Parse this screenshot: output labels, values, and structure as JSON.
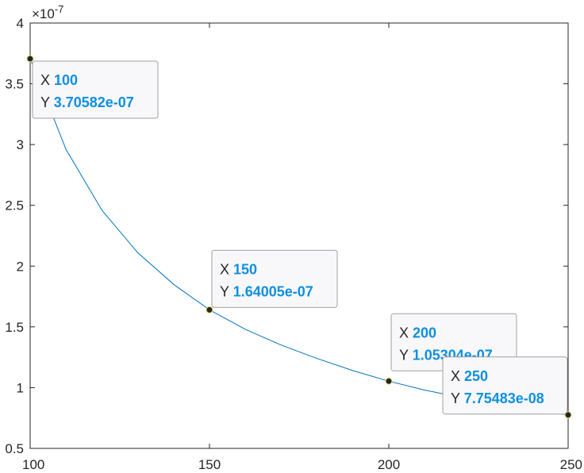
{
  "chart_data": {
    "type": "line",
    "title": "",
    "xlabel": "",
    "ylabel": "",
    "xlim": [
      100,
      250
    ],
    "ylim": [
      0.5,
      4
    ],
    "y_exponent_label": "×10",
    "y_exponent_power": "-7",
    "x_ticks": [
      "100",
      "150",
      "200",
      "250"
    ],
    "y_ticks": [
      "0.5",
      "1",
      "1.5",
      "2",
      "2.5",
      "3",
      "3.5",
      "4"
    ],
    "grid": false,
    "line_color": "#0072bd",
    "series": [
      {
        "x": [
          100,
          110,
          120,
          130,
          140,
          150,
          160,
          170,
          180,
          190,
          200,
          210,
          220,
          230,
          240,
          250
        ],
        "y": [
          3.706,
          2.96,
          2.46,
          2.11,
          1.85,
          1.64,
          1.48,
          1.35,
          1.24,
          1.14,
          1.053,
          0.98,
          0.92,
          0.87,
          0.82,
          0.775
        ]
      }
    ],
    "datatips": [
      {
        "x_key": "X",
        "x_value": "100",
        "y_key": "Y",
        "y_value": "3.70582e-07",
        "x": 100,
        "y": 3.70582
      },
      {
        "x_key": "X",
        "x_value": "150",
        "y_key": "Y",
        "y_value": "1.64005e-07",
        "x": 150,
        "y": 1.64005
      },
      {
        "x_key": "X",
        "x_value": "200",
        "y_key": "Y",
        "y_value": "1.05304e-07",
        "x": 200,
        "y": 1.05304
      },
      {
        "x_key": "X",
        "x_value": "250",
        "y_key": "Y",
        "y_value": "7.75483e-08",
        "x": 250,
        "y": 0.775483
      }
    ]
  }
}
